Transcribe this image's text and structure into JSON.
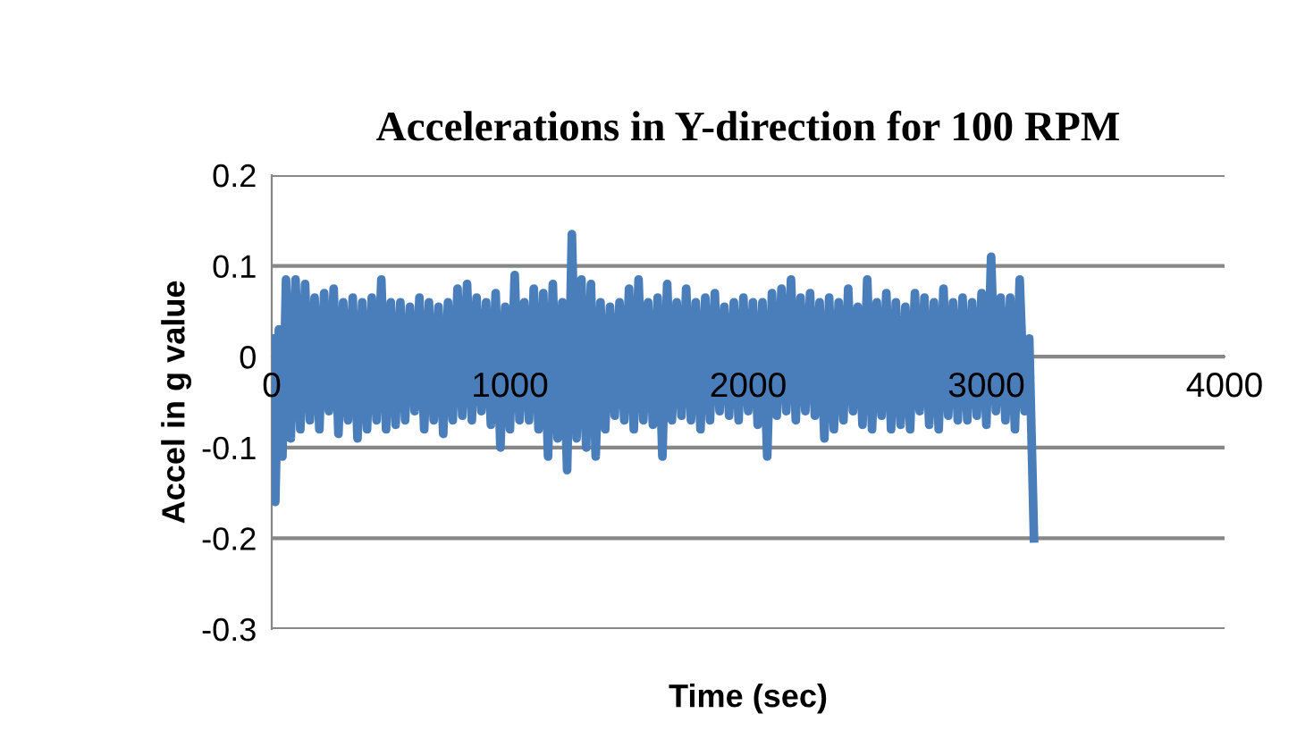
{
  "chart_data": {
    "type": "line",
    "title": "Accelerations in Y-direction for 100 RPM",
    "xlabel": "Time (sec)",
    "ylabel": "Accel in g value",
    "xlim": [
      0,
      4000
    ],
    "ylim": [
      -0.3,
      0.2
    ],
    "xticks": [
      0,
      1000,
      2000,
      3000,
      4000
    ],
    "yticks": [
      -0.3,
      -0.2,
      -0.1,
      0,
      0.1,
      0.2
    ],
    "grid": "y",
    "legend": false,
    "marker": "none",
    "line_style": "solid",
    "series": [
      {
        "color": "#4a7ebb",
        "x": [
          0,
          15,
          30,
          45,
          60,
          80,
          100,
          120,
          140,
          160,
          180,
          200,
          220,
          240,
          260,
          280,
          300,
          320,
          340,
          360,
          380,
          400,
          420,
          440,
          460,
          480,
          500,
          520,
          540,
          560,
          580,
          600,
          620,
          640,
          660,
          680,
          700,
          720,
          740,
          760,
          780,
          800,
          820,
          840,
          860,
          880,
          900,
          920,
          940,
          960,
          980,
          1000,
          1020,
          1040,
          1060,
          1080,
          1100,
          1120,
          1140,
          1160,
          1180,
          1200,
          1220,
          1240,
          1260,
          1280,
          1300,
          1320,
          1340,
          1360,
          1380,
          1400,
          1420,
          1440,
          1460,
          1480,
          1500,
          1520,
          1540,
          1560,
          1580,
          1600,
          1620,
          1640,
          1660,
          1680,
          1700,
          1720,
          1740,
          1760,
          1780,
          1800,
          1820,
          1840,
          1860,
          1880,
          1900,
          1920,
          1940,
          1960,
          1980,
          2000,
          2020,
          2040,
          2060,
          2080,
          2100,
          2120,
          2140,
          2160,
          2180,
          2200,
          2220,
          2240,
          2260,
          2280,
          2300,
          2320,
          2340,
          2360,
          2380,
          2400,
          2420,
          2440,
          2460,
          2480,
          2500,
          2520,
          2540,
          2560,
          2580,
          2600,
          2620,
          2640,
          2660,
          2680,
          2700,
          2720,
          2740,
          2760,
          2780,
          2800,
          2820,
          2840,
          2860,
          2880,
          2900,
          2920,
          2940,
          2960,
          2980,
          3000,
          3020,
          3040,
          3060,
          3080,
          3100,
          3120,
          3140,
          3160,
          3180,
          3200
        ],
        "values": [
          0.02,
          -0.16,
          0.03,
          -0.11,
          0.085,
          -0.09,
          0.085,
          -0.08,
          0.08,
          -0.07,
          0.065,
          -0.08,
          0.07,
          -0.06,
          0.075,
          -0.085,
          0.06,
          -0.07,
          0.065,
          -0.09,
          0.06,
          -0.08,
          0.065,
          -0.07,
          0.085,
          -0.08,
          0.06,
          -0.075,
          0.06,
          -0.07,
          0.055,
          -0.06,
          0.065,
          -0.08,
          0.06,
          -0.07,
          0.055,
          -0.085,
          0.06,
          -0.07,
          0.075,
          -0.065,
          0.08,
          -0.07,
          0.065,
          -0.06,
          0.06,
          -0.075,
          0.07,
          -0.1,
          0.055,
          -0.08,
          0.09,
          -0.07,
          0.06,
          -0.07,
          0.075,
          -0.08,
          0.07,
          -0.11,
          0.08,
          -0.09,
          0.06,
          -0.125,
          0.135,
          -0.09,
          0.085,
          -0.1,
          0.08,
          -0.11,
          0.06,
          -0.08,
          0.055,
          -0.065,
          0.06,
          -0.07,
          0.075,
          -0.08,
          0.085,
          -0.07,
          0.06,
          -0.075,
          0.065,
          -0.11,
          0.08,
          -0.07,
          0.06,
          -0.065,
          0.075,
          -0.07,
          0.06,
          -0.08,
          0.065,
          -0.07,
          0.07,
          -0.06,
          0.055,
          -0.065,
          0.06,
          -0.07,
          0.065,
          -0.06,
          0.06,
          -0.075,
          0.06,
          -0.11,
          0.07,
          -0.065,
          0.075,
          -0.06,
          0.085,
          -0.07,
          0.065,
          -0.06,
          0.07,
          -0.065,
          0.06,
          -0.09,
          0.065,
          -0.08,
          0.06,
          -0.07,
          0.075,
          -0.06,
          0.055,
          -0.075,
          0.085,
          -0.08,
          0.06,
          -0.065,
          0.07,
          -0.08,
          0.06,
          -0.075,
          0.055,
          -0.08,
          0.07,
          -0.06,
          0.065,
          -0.075,
          0.06,
          -0.08,
          0.075,
          -0.065,
          0.06,
          -0.07,
          0.065,
          -0.07,
          0.06,
          -0.065,
          0.07,
          -0.075,
          0.11,
          -0.06,
          0.065,
          -0.07,
          0.065,
          -0.08,
          0.085,
          -0.06,
          0.02,
          -0.2
        ]
      }
    ]
  }
}
